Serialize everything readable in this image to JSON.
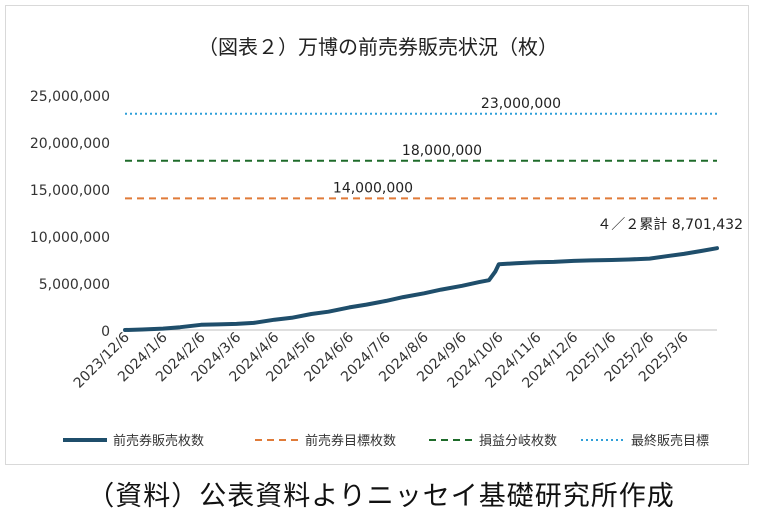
{
  "chart_data": {
    "type": "line",
    "title": "（図表２）万博の前売券販売状況（枚）",
    "ylim": [
      0,
      25000000
    ],
    "yticks": [
      0,
      5000000,
      10000000,
      15000000,
      20000000,
      25000000
    ],
    "ytick_labels": [
      "0",
      "5,000,000",
      "10,000,000",
      "15,000,000",
      "20,000,000",
      "25,000,000"
    ],
    "x_categories": [
      "2023/12/6",
      "2024/1/6",
      "2024/2/6",
      "2024/3/6",
      "2024/4/6",
      "2024/5/6",
      "2024/6/6",
      "2024/7/6",
      "2024/8/6",
      "2024/9/6",
      "2024/10/6",
      "2024/11/6",
      "2024/12/6",
      "2025/1/6",
      "2025/2/6",
      "2025/3/6"
    ],
    "x_end": "2025/4/2",
    "grid": false,
    "legend_position": "bottom",
    "series": [
      {
        "name": "前売券販売枚数",
        "color": "#1f4e6b",
        "style": "solid",
        "points": [
          [
            "2023/12/6",
            0
          ],
          [
            "2023/12/20",
            50000
          ],
          [
            "2024/1/6",
            150000
          ],
          [
            "2024/1/20",
            300000
          ],
          [
            "2024/2/6",
            550000
          ],
          [
            "2024/2/20",
            600000
          ],
          [
            "2024/3/6",
            650000
          ],
          [
            "2024/3/20",
            750000
          ],
          [
            "2024/4/6",
            1100000
          ],
          [
            "2024/4/20",
            1300000
          ],
          [
            "2024/5/6",
            1700000
          ],
          [
            "2024/5/20",
            1950000
          ],
          [
            "2024/6/6",
            2400000
          ],
          [
            "2024/6/20",
            2700000
          ],
          [
            "2024/7/6",
            3100000
          ],
          [
            "2024/7/20",
            3500000
          ],
          [
            "2024/8/6",
            3900000
          ],
          [
            "2024/8/20",
            4300000
          ],
          [
            "2024/9/6",
            4700000
          ],
          [
            "2024/9/20",
            5100000
          ],
          [
            "2024/9/28",
            5300000
          ],
          [
            "2024/10/3",
            6200000
          ],
          [
            "2024/10/6",
            7000000
          ],
          [
            "2024/10/20",
            7100000
          ],
          [
            "2024/11/6",
            7200000
          ],
          [
            "2024/11/20",
            7250000
          ],
          [
            "2024/12/6",
            7350000
          ],
          [
            "2024/12/20",
            7400000
          ],
          [
            "2025/1/6",
            7450000
          ],
          [
            "2025/1/20",
            7500000
          ],
          [
            "2025/2/6",
            7600000
          ],
          [
            "2025/2/20",
            7850000
          ],
          [
            "2025/3/6",
            8100000
          ],
          [
            "2025/3/20",
            8400000
          ],
          [
            "2025/4/2",
            8701432
          ]
        ]
      },
      {
        "name": "前売券目標枚数",
        "color": "#e07b39",
        "style": "dashed",
        "value": 14000000
      },
      {
        "name": "損益分岐枚数",
        "color": "#1e6b2a",
        "style": "dashed",
        "value": 18000000
      },
      {
        "name": "最終販売目標",
        "color": "#2f9fd8",
        "style": "dotted",
        "value": 23000000
      }
    ],
    "annotations": [
      {
        "text": "23,000,000",
        "series": "最終販売目標"
      },
      {
        "text": "18,000,000",
        "series": "損益分岐枚数"
      },
      {
        "text": "14,000,000",
        "series": "前売券目標枚数"
      },
      {
        "text": "４／２累計 8,701,432",
        "series": "前売券販売枚数"
      }
    ]
  },
  "source_note": "（資料）公表資料よりニッセイ基礎研究所作成"
}
